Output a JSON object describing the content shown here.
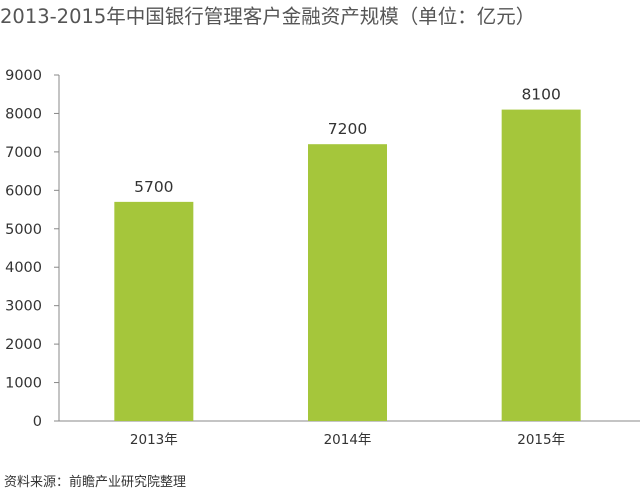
{
  "colors": {
    "bar": "#a5c63b",
    "axis": "#888888",
    "text": "#333333",
    "title": "#555555"
  },
  "chart_data": {
    "type": "bar",
    "title": "2013-2015年中国银行管理客户金融资产规模（单位：亿元）",
    "categories": [
      "2013年",
      "2014年",
      "2015年"
    ],
    "values": [
      5700,
      7200,
      8100
    ],
    "data_labels": [
      "5700",
      "7200",
      "8100"
    ],
    "y_ticks": [
      "0",
      "1000",
      "2000",
      "3000",
      "4000",
      "5000",
      "6000",
      "7000",
      "8000",
      "9000"
    ],
    "ylim": [
      0,
      9000
    ],
    "grid": false,
    "legend": "none"
  },
  "source": "资料来源：前瞻产业研究院整理"
}
